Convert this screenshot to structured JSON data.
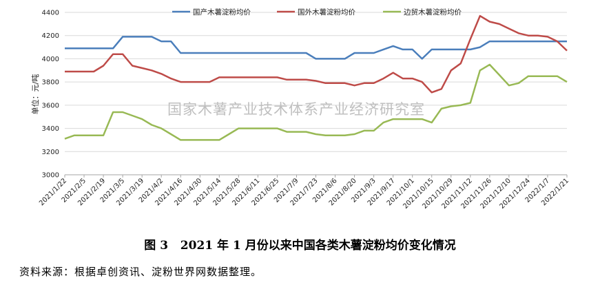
{
  "figure": {
    "caption": "图 3   2021 年 1 月份以来中国各类木薯淀粉均价变化情况",
    "source": "资料来源：根据卓创资讯、淀粉世界网数据整理。",
    "watermark": "国家木薯产业技术体系产业经济研究室"
  },
  "chart_data": {
    "type": "line",
    "title": "",
    "xlabel": "",
    "ylabel": "单位：元/吨",
    "ylim": [
      3000,
      4400
    ],
    "yticks": [
      3000,
      3200,
      3400,
      3600,
      3800,
      4000,
      4200,
      4400
    ],
    "grid": "horizontal",
    "legend_position": "top",
    "x_tick_labels": [
      "2021/1/22",
      "2021/2/5",
      "2021/2/19",
      "2021/3/5",
      "2021/3/19",
      "2021/4/2",
      "2021/4/16",
      "2021/4/30",
      "2021/5/14",
      "2021/5/28",
      "2021/6/11",
      "2021/6/25",
      "2021/7/9",
      "2021/7/23",
      "2021/8/6",
      "2021/8/20",
      "2021/9/3",
      "2021/9/17",
      "2021/10/1",
      "2021/10/15",
      "2021/10/29",
      "2021/11/12",
      "2021/11/26",
      "2021/12/10",
      "2021/12/24",
      "2022/1/7",
      "2022/1/21"
    ],
    "x": [
      "2021/1/22",
      "2021/1/29",
      "2021/2/5",
      "2021/2/12",
      "2021/2/19",
      "2021/2/26",
      "2021/3/5",
      "2021/3/12",
      "2021/3/19",
      "2021/3/26",
      "2021/4/2",
      "2021/4/9",
      "2021/4/16",
      "2021/4/23",
      "2021/4/30",
      "2021/5/7",
      "2021/5/14",
      "2021/5/21",
      "2021/5/28",
      "2021/6/4",
      "2021/6/11",
      "2021/6/18",
      "2021/6/25",
      "2021/7/2",
      "2021/7/9",
      "2021/7/16",
      "2021/7/23",
      "2021/7/30",
      "2021/8/6",
      "2021/8/13",
      "2021/8/20",
      "2021/8/27",
      "2021/9/3",
      "2021/9/10",
      "2021/9/17",
      "2021/9/24",
      "2021/10/1",
      "2021/10/8",
      "2021/10/15",
      "2021/10/22",
      "2021/10/29",
      "2021/11/5",
      "2021/11/12",
      "2021/11/19",
      "2021/11/26",
      "2021/12/3",
      "2021/12/10",
      "2021/12/17",
      "2021/12/24",
      "2021/12/31",
      "2022/1/7",
      "2022/1/14",
      "2022/1/21"
    ],
    "series": [
      {
        "name": "国产木薯淀粉均价",
        "color": "#4a7ebb",
        "values": [
          4090,
          4090,
          4090,
          4090,
          4090,
          4090,
          4190,
          4190,
          4190,
          4190,
          4150,
          4150,
          4050,
          4050,
          4050,
          4050,
          4050,
          4050,
          4050,
          4050,
          4050,
          4050,
          4050,
          4050,
          4050,
          4050,
          4000,
          4000,
          4000,
          4000,
          4050,
          4050,
          4050,
          4080,
          4110,
          4080,
          4080,
          4000,
          4080,
          4080,
          4080,
          4080,
          4080,
          4100,
          4150,
          4150,
          4150,
          4150,
          4150,
          4150,
          4150,
          4150,
          4150
        ]
      },
      {
        "name": "国外木薯淀粉均价",
        "color": "#be4b48",
        "values": [
          3890,
          3890,
          3890,
          3890,
          3940,
          4040,
          4040,
          3940,
          3920,
          3900,
          3870,
          3830,
          3800,
          3800,
          3800,
          3800,
          3840,
          3840,
          3840,
          3840,
          3840,
          3840,
          3840,
          3820,
          3820,
          3820,
          3810,
          3790,
          3790,
          3790,
          3770,
          3790,
          3790,
          3830,
          3880,
          3830,
          3830,
          3800,
          3710,
          3740,
          3900,
          3960,
          4170,
          4370,
          4320,
          4300,
          4260,
          4220,
          4200,
          4200,
          4190,
          4150,
          4070
        ]
      },
      {
        "name": "边贸木薯淀粉均价",
        "color": "#98b954",
        "values": [
          3310,
          3340,
          3340,
          3340,
          3340,
          3540,
          3540,
          3510,
          3480,
          3430,
          3400,
          3350,
          3300,
          3300,
          3300,
          3300,
          3300,
          3350,
          3400,
          3400,
          3400,
          3400,
          3400,
          3370,
          3370,
          3370,
          3350,
          3340,
          3340,
          3340,
          3350,
          3380,
          3380,
          3450,
          3480,
          3480,
          3480,
          3480,
          3450,
          3570,
          3590,
          3600,
          3620,
          3900,
          3950,
          3860,
          3770,
          3790,
          3850,
          3850,
          3850,
          3850,
          3800
        ]
      }
    ]
  }
}
